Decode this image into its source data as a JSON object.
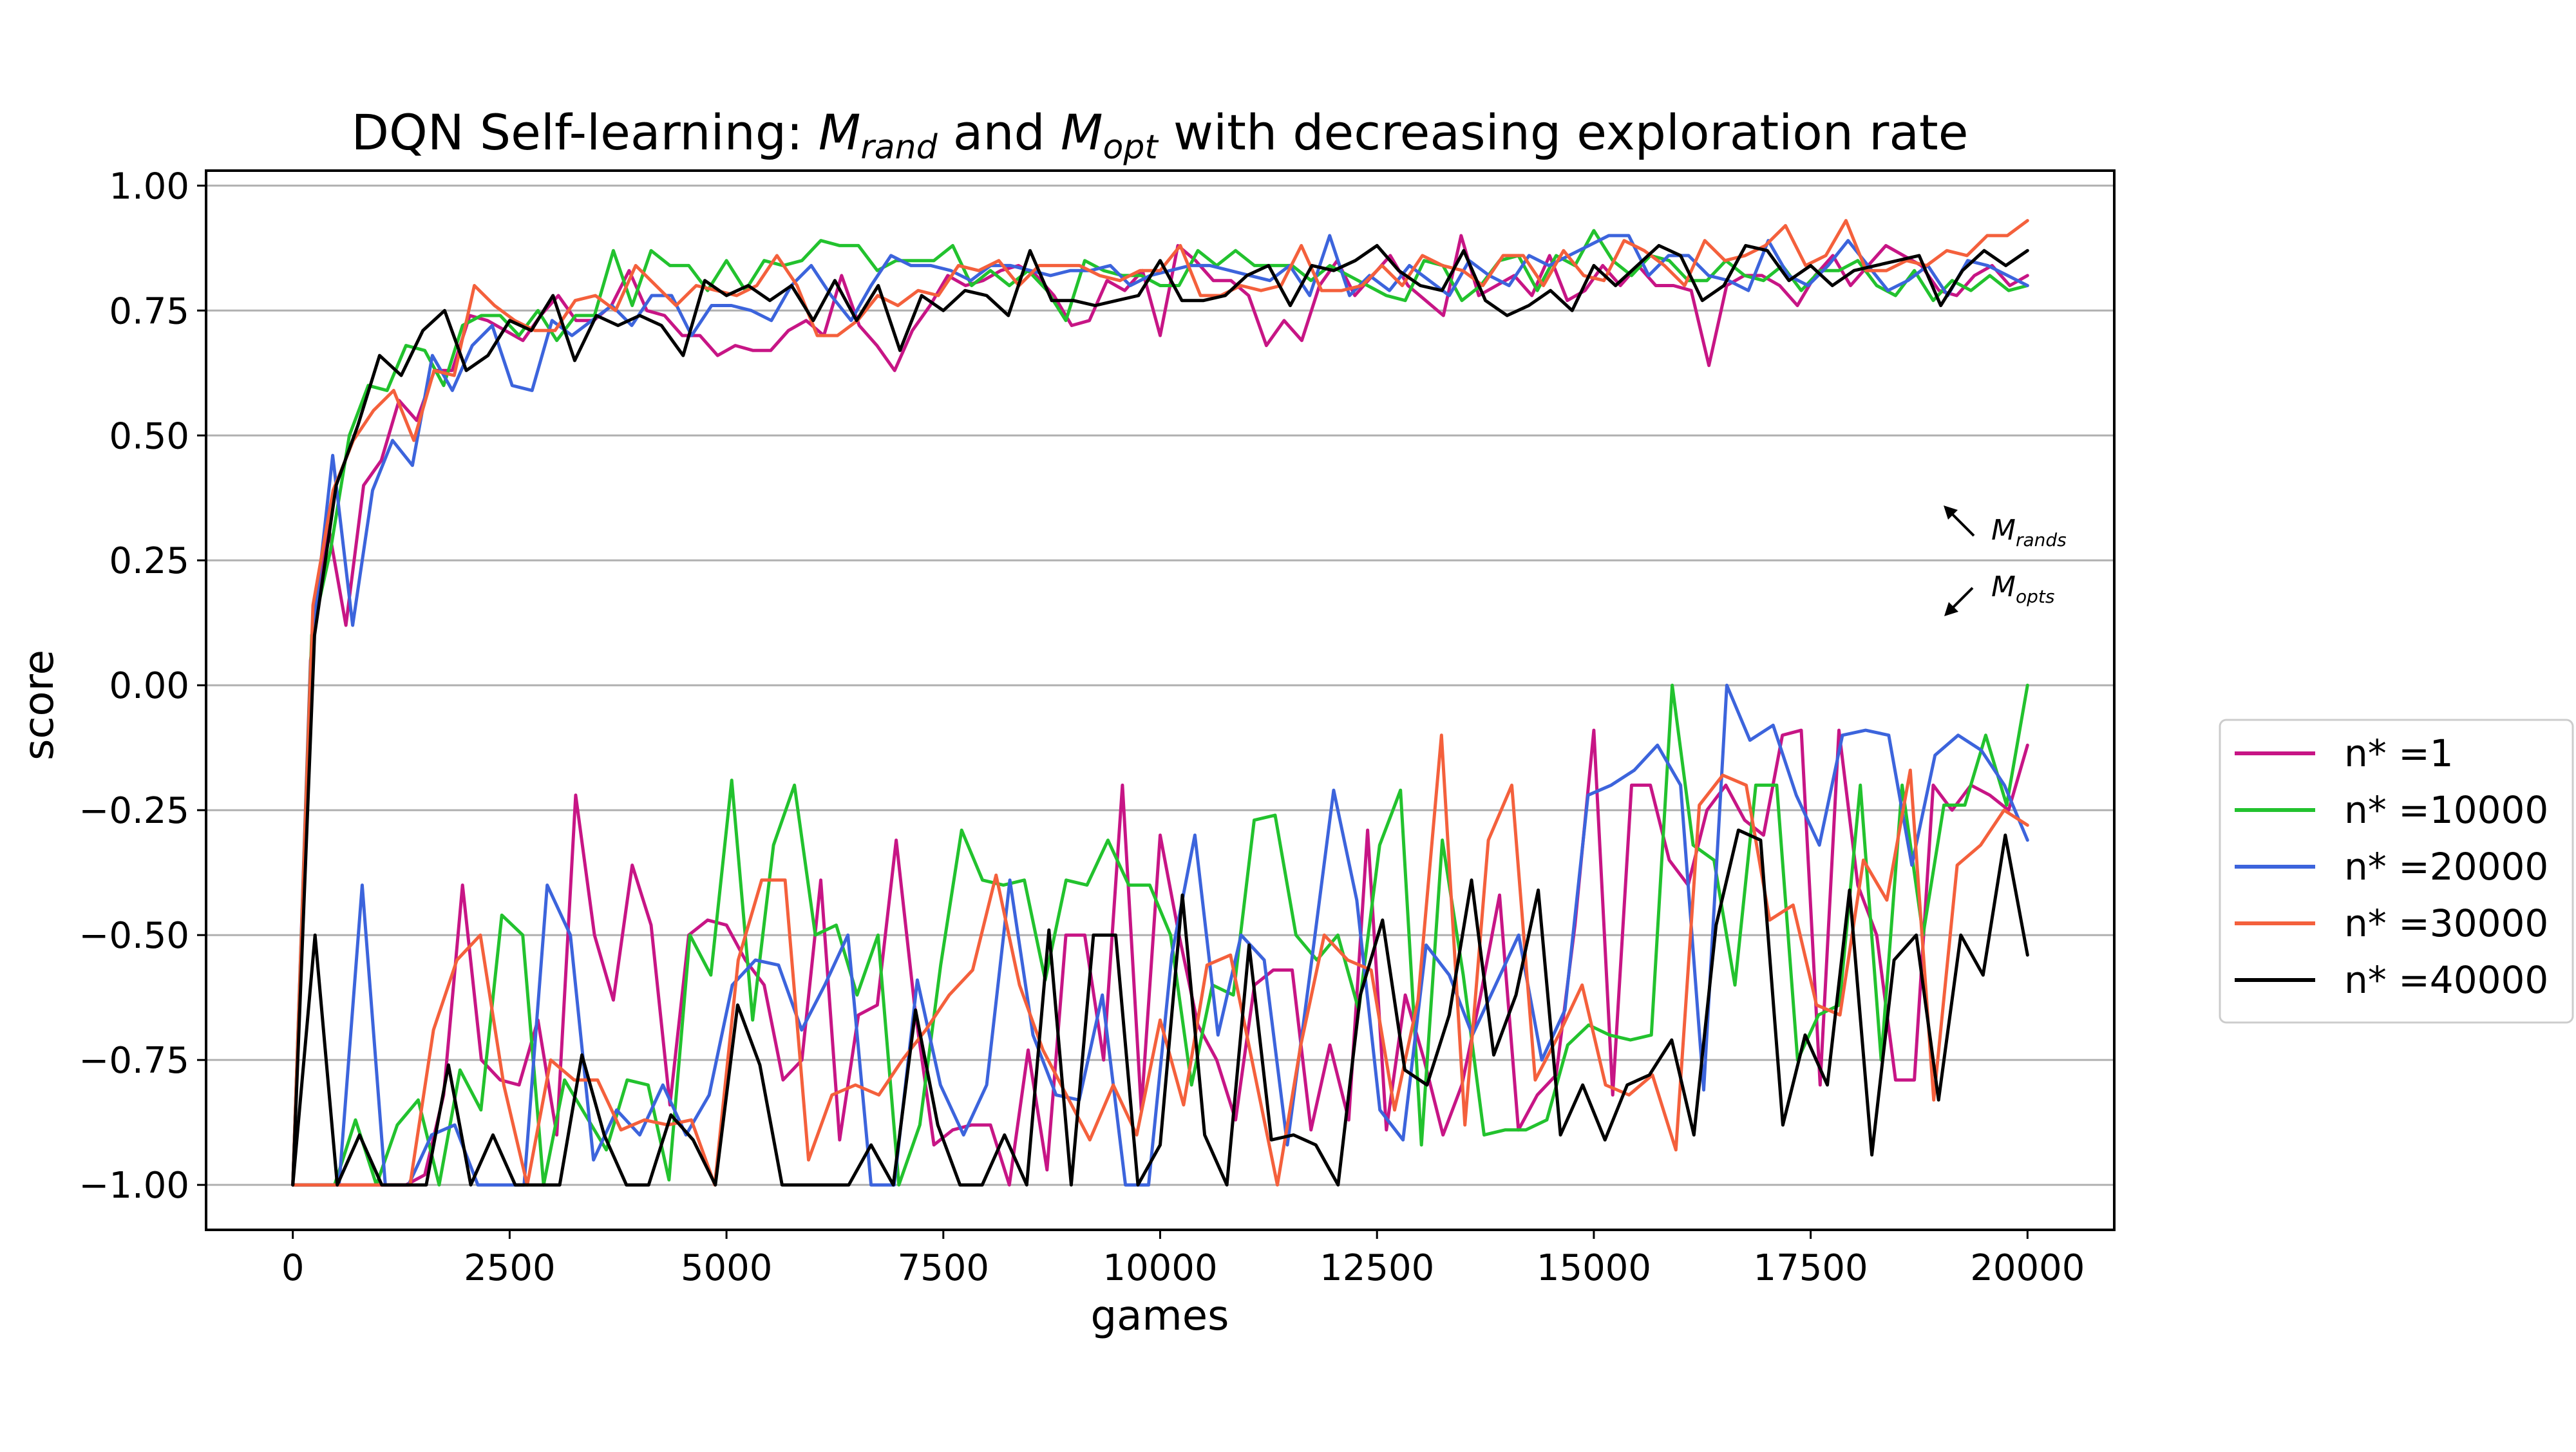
{
  "chart_data": {
    "type": "line",
    "title": {
      "prefix": "DQN Self-learning: ",
      "m1": "M",
      "m1_sub": "rand",
      "mid": " and ",
      "m2": "M",
      "m2_sub": "opt",
      "suffix": " with decreasing exploration rate"
    },
    "xlabel": "games",
    "ylabel": "score",
    "xlim": [
      -1000,
      21000
    ],
    "ylim": [
      -1.09,
      1.03
    ],
    "xticks": [
      0,
      2500,
      5000,
      7500,
      10000,
      12500,
      15000,
      17500,
      20000
    ],
    "xtick_labels": [
      "0",
      "2500",
      "5000",
      "7500",
      "10000",
      "12500",
      "15000",
      "17500",
      "20000"
    ],
    "yticks": [
      1.0,
      0.75,
      0.5,
      0.25,
      0.0,
      -0.25,
      -0.5,
      -0.75,
      -1.0
    ],
    "ytick_labels": [
      "1.00",
      "0.75",
      "0.50",
      "0.25",
      "0.00",
      "−0.25",
      "−0.50",
      "−0.75",
      "−1.00"
    ],
    "grid": "horizontal",
    "legend_position": "outside right",
    "annotations": [
      {
        "text": "M",
        "sub": "rands",
        "arrow": "up-left"
      },
      {
        "text": "M",
        "sub": "opts",
        "arrow": "down-left"
      }
    ],
    "x_start": 0,
    "x_step": 250,
    "series": [
      {
        "name": "n* =1",
        "color": "#c71585",
        "rand": [
          -1.0,
          0.05,
          0.32,
          0.12,
          0.4,
          0.45,
          0.57,
          0.53,
          0.63,
          0.63,
          0.74,
          0.73,
          0.71,
          0.69,
          0.74,
          0.78,
          0.73,
          0.73,
          0.76,
          0.83,
          0.75,
          0.74,
          0.7,
          0.7,
          0.66,
          0.68,
          0.67,
          0.67,
          0.71,
          0.73,
          0.7,
          0.82,
          0.72,
          0.68,
          0.63,
          0.71,
          0.76,
          0.82,
          0.8,
          0.81,
          0.83,
          0.84,
          0.82,
          0.78,
          0.72,
          0.73,
          0.81,
          0.79,
          0.83,
          0.7,
          0.88,
          0.85,
          0.81,
          0.81,
          0.78,
          0.68,
          0.73,
          0.69,
          0.8,
          0.85,
          0.78,
          0.82,
          0.86,
          0.8,
          0.77,
          0.74,
          0.9,
          0.78,
          0.8,
          0.82,
          0.78,
          0.86,
          0.77,
          0.79,
          0.84,
          0.8,
          0.84,
          0.8,
          0.8,
          0.79,
          0.64,
          0.8,
          0.82,
          0.82,
          0.8,
          0.76,
          0.82,
          0.86,
          0.8,
          0.84,
          0.88,
          0.86,
          0.84,
          0.79,
          0.78,
          0.82,
          0.84,
          0.8,
          0.82
        ],
        "opt": [
          -1.0,
          -1.0,
          -1.0,
          -1.0,
          -1.0,
          -1.0,
          -1.0,
          -0.98,
          -0.82,
          -0.4,
          -0.75,
          -0.79,
          -0.8,
          -0.67,
          -0.9,
          -0.22,
          -0.5,
          -0.63,
          -0.36,
          -0.48,
          -0.84,
          -0.5,
          -0.47,
          -0.48,
          -0.55,
          -0.6,
          -0.79,
          -0.75,
          -0.39,
          -0.91,
          -0.66,
          -0.64,
          -0.31,
          -0.65,
          -0.92,
          -0.89,
          -0.88,
          -0.88,
          -1.0,
          -0.73,
          -0.97,
          -0.5,
          -0.5,
          -0.75,
          -0.2,
          -0.85,
          -0.3,
          -0.5,
          -0.68,
          -0.75,
          -0.87,
          -0.6,
          -0.57,
          -0.57,
          -0.89,
          -0.72,
          -0.87,
          -0.29,
          -0.89,
          -0.62,
          -0.75,
          -0.9,
          -0.8,
          -0.62,
          -0.42,
          -0.89,
          -0.82,
          -0.78,
          -0.48,
          -0.09,
          -0.82,
          -0.2,
          -0.2,
          -0.35,
          -0.4,
          -0.25,
          -0.2,
          -0.27,
          -0.3,
          -0.1,
          -0.09,
          -0.8,
          -0.09,
          -0.4,
          -0.5,
          -0.79,
          -0.79,
          -0.2,
          -0.25,
          -0.2,
          -0.22,
          -0.25,
          -0.12
        ]
      },
      {
        "name": "n* =10000",
        "color": "#22c22e",
        "rand": [
          -1.0,
          0.1,
          0.27,
          0.5,
          0.6,
          0.59,
          0.68,
          0.67,
          0.6,
          0.72,
          0.74,
          0.74,
          0.7,
          0.75,
          0.69,
          0.74,
          0.74,
          0.87,
          0.76,
          0.87,
          0.84,
          0.84,
          0.79,
          0.85,
          0.79,
          0.85,
          0.84,
          0.85,
          0.89,
          0.88,
          0.88,
          0.83,
          0.85,
          0.85,
          0.85,
          0.88,
          0.8,
          0.83,
          0.8,
          0.83,
          0.79,
          0.73,
          0.85,
          0.83,
          0.82,
          0.82,
          0.8,
          0.8,
          0.87,
          0.84,
          0.87,
          0.84,
          0.84,
          0.84,
          0.81,
          0.84,
          0.82,
          0.8,
          0.78,
          0.77,
          0.85,
          0.84,
          0.77,
          0.8,
          0.85,
          0.86,
          0.79,
          0.86,
          0.84,
          0.91,
          0.85,
          0.82,
          0.86,
          0.85,
          0.81,
          0.81,
          0.85,
          0.82,
          0.81,
          0.84,
          0.79,
          0.83,
          0.83,
          0.85,
          0.8,
          0.78,
          0.83,
          0.77,
          0.81,
          0.79,
          0.82,
          0.79,
          0.8
        ],
        "opt": [
          -1.0,
          -1.0,
          -1.0,
          -0.87,
          -1.0,
          -0.88,
          -0.83,
          -1.0,
          -0.77,
          -0.85,
          -0.46,
          -0.5,
          -1.0,
          -0.79,
          -0.86,
          -0.93,
          -0.79,
          -0.8,
          -0.99,
          -0.5,
          -0.58,
          -0.19,
          -0.67,
          -0.32,
          -0.2,
          -0.5,
          -0.48,
          -0.62,
          -0.5,
          -1.0,
          -0.88,
          -0.56,
          -0.29,
          -0.39,
          -0.4,
          -0.39,
          -0.59,
          -0.39,
          -0.4,
          -0.31,
          -0.4,
          -0.4,
          -0.5,
          -0.8,
          -0.6,
          -0.62,
          -0.27,
          -0.26,
          -0.5,
          -0.55,
          -0.5,
          -0.65,
          -0.32,
          -0.21,
          -0.92,
          -0.31,
          -0.58,
          -0.9,
          -0.89,
          -0.89,
          -0.87,
          -0.72,
          -0.68,
          -0.7,
          -0.71,
          -0.7,
          -0.0,
          -0.32,
          -0.35,
          -0.6,
          -0.2,
          -0.2,
          -0.75,
          -0.66,
          -0.64,
          -0.2,
          -0.75,
          -0.2,
          -0.5,
          -0.24,
          -0.24,
          -0.1,
          -0.24,
          -0.0
        ]
      },
      {
        "name": "n* =20000",
        "color": "#3c64dc",
        "rand": [
          -1.0,
          0.1,
          0.46,
          0.12,
          0.39,
          0.49,
          0.44,
          0.66,
          0.59,
          0.68,
          0.72,
          0.6,
          0.59,
          0.73,
          0.7,
          0.73,
          0.76,
          0.72,
          0.78,
          0.78,
          0.7,
          0.76,
          0.76,
          0.75,
          0.73,
          0.8,
          0.84,
          0.78,
          0.73,
          0.8,
          0.86,
          0.84,
          0.84,
          0.83,
          0.81,
          0.84,
          0.84,
          0.83,
          0.82,
          0.83,
          0.83,
          0.84,
          0.8,
          0.82,
          0.83,
          0.84,
          0.84,
          0.83,
          0.82,
          0.81,
          0.84,
          0.78,
          0.9,
          0.78,
          0.82,
          0.79,
          0.84,
          0.81,
          0.78,
          0.85,
          0.82,
          0.8,
          0.86,
          0.84,
          0.86,
          0.88,
          0.9,
          0.9,
          0.82,
          0.86,
          0.86,
          0.82,
          0.81,
          0.79,
          0.89,
          0.82,
          0.8,
          0.84,
          0.89,
          0.84,
          0.79,
          0.81,
          0.84,
          0.78,
          0.85,
          0.84,
          0.82,
          0.8
        ],
        "opt": [
          -1.0,
          -1.0,
          -1.0,
          -0.4,
          -1.0,
          -1.0,
          -0.9,
          -0.88,
          -1.0,
          -1.0,
          -1.0,
          -0.4,
          -0.5,
          -0.95,
          -0.85,
          -0.9,
          -0.8,
          -0.9,
          -0.82,
          -0.6,
          -0.55,
          -0.56,
          -0.69,
          -0.6,
          -0.5,
          -1.0,
          -1.0,
          -0.59,
          -0.8,
          -0.9,
          -0.8,
          -0.39,
          -0.7,
          -0.82,
          -0.83,
          -0.62,
          -1.0,
          -1.0,
          -0.54,
          -0.3,
          -0.7,
          -0.5,
          -0.55,
          -0.92,
          -0.57,
          -0.21,
          -0.43,
          -0.85,
          -0.91,
          -0.52,
          -0.58,
          -0.7,
          -0.6,
          -0.5,
          -0.75,
          -0.65,
          -0.22,
          -0.2,
          -0.17,
          -0.12,
          -0.2,
          -0.81,
          -0.0,
          -0.11,
          -0.08,
          -0.22,
          -0.32,
          -0.1,
          -0.09,
          -0.1,
          -0.36,
          -0.14,
          -0.1,
          -0.13,
          -0.2,
          -0.31
        ]
      },
      {
        "name": "n* =30000",
        "color": "#f4603c",
        "rand": [
          -1.0,
          0.16,
          0.39,
          0.49,
          0.55,
          0.59,
          0.49,
          0.63,
          0.62,
          0.8,
          0.76,
          0.73,
          0.71,
          0.71,
          0.77,
          0.78,
          0.75,
          0.84,
          0.8,
          0.76,
          0.8,
          0.79,
          0.78,
          0.8,
          0.86,
          0.8,
          0.7,
          0.7,
          0.73,
          0.78,
          0.76,
          0.79,
          0.78,
          0.84,
          0.83,
          0.85,
          0.8,
          0.84,
          0.84,
          0.84,
          0.82,
          0.81,
          0.83,
          0.83,
          0.88,
          0.78,
          0.78,
          0.8,
          0.79,
          0.8,
          0.88,
          0.79,
          0.79,
          0.8,
          0.84,
          0.8,
          0.86,
          0.84,
          0.83,
          0.8,
          0.86,
          0.86,
          0.8,
          0.87,
          0.82,
          0.81,
          0.89,
          0.87,
          0.84,
          0.8,
          0.89,
          0.85,
          0.86,
          0.88,
          0.92,
          0.84,
          0.86,
          0.93,
          0.83,
          0.83,
          0.85,
          0.84,
          0.87,
          0.86,
          0.9,
          0.9,
          0.93
        ],
        "opt": [
          -1.0,
          -1.0,
          -1.0,
          -1.0,
          -1.0,
          -1.0,
          -0.69,
          -0.55,
          -0.5,
          -0.8,
          -1.0,
          -0.75,
          -0.79,
          -0.79,
          -0.89,
          -0.87,
          -0.88,
          -0.87,
          -1.0,
          -0.55,
          -0.39,
          -0.39,
          -0.95,
          -0.82,
          -0.8,
          -0.82,
          -0.75,
          -0.69,
          -0.62,
          -0.57,
          -0.38,
          -0.6,
          -0.73,
          -0.82,
          -0.91,
          -0.8,
          -0.9,
          -0.67,
          -0.84,
          -0.56,
          -0.54,
          -0.77,
          -1.0,
          -0.72,
          -0.5,
          -0.55,
          -0.57,
          -0.85,
          -0.63,
          -0.1,
          -0.88,
          -0.31,
          -0.2,
          -0.79,
          -0.7,
          -0.6,
          -0.8,
          -0.82,
          -0.78,
          -0.93,
          -0.24,
          -0.18,
          -0.2,
          -0.47,
          -0.44,
          -0.64,
          -0.66,
          -0.35,
          -0.43,
          -0.17,
          -0.83,
          -0.36,
          -0.32,
          -0.25,
          -0.28
        ]
      },
      {
        "name": "n* =40000",
        "color": "#000000",
        "rand": [
          -1.0,
          0.1,
          0.4,
          0.52,
          0.66,
          0.62,
          0.71,
          0.75,
          0.63,
          0.66,
          0.73,
          0.71,
          0.78,
          0.65,
          0.74,
          0.72,
          0.74,
          0.72,
          0.66,
          0.81,
          0.78,
          0.8,
          0.77,
          0.8,
          0.73,
          0.81,
          0.73,
          0.8,
          0.67,
          0.78,
          0.75,
          0.79,
          0.78,
          0.74,
          0.87,
          0.77,
          0.77,
          0.76,
          0.77,
          0.78,
          0.85,
          0.77,
          0.77,
          0.78,
          0.82,
          0.84,
          0.76,
          0.84,
          0.83,
          0.85,
          0.88,
          0.83,
          0.8,
          0.79,
          0.87,
          0.77,
          0.74,
          0.76,
          0.79,
          0.75,
          0.84,
          0.8,
          0.84,
          0.88,
          0.86,
          0.77,
          0.8,
          0.88,
          0.87,
          0.81,
          0.84,
          0.8,
          0.83,
          0.84,
          0.85,
          0.86,
          0.76,
          0.83,
          0.87,
          0.84,
          0.87
        ],
        "opt": [
          -1.0,
          -0.5,
          -1.0,
          -0.9,
          -1.0,
          -1.0,
          -1.0,
          -0.76,
          -1.0,
          -0.9,
          -1.0,
          -1.0,
          -1.0,
          -0.74,
          -0.9,
          -1.0,
          -1.0,
          -0.86,
          -0.91,
          -1.0,
          -0.64,
          -0.76,
          -1.0,
          -1.0,
          -1.0,
          -1.0,
          -0.92,
          -1.0,
          -0.65,
          -0.88,
          -1.0,
          -1.0,
          -0.9,
          -1.0,
          -0.49,
          -1.0,
          -0.5,
          -0.5,
          -1.0,
          -0.92,
          -0.42,
          -0.9,
          -1.0,
          -0.52,
          -0.91,
          -0.9,
          -0.92,
          -1.0,
          -0.62,
          -0.47,
          -0.77,
          -0.8,
          -0.66,
          -0.39,
          -0.74,
          -0.62,
          -0.41,
          -0.9,
          -0.8,
          -0.91,
          -0.8,
          -0.78,
          -0.71,
          -0.9,
          -0.48,
          -0.29,
          -0.31,
          -0.88,
          -0.7,
          -0.8,
          -0.41,
          -0.94,
          -0.55,
          -0.5,
          -0.83,
          -0.5,
          -0.58,
          -0.3,
          -0.54
        ]
      }
    ]
  }
}
